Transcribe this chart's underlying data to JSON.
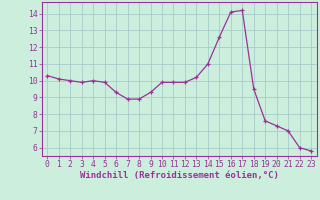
{
  "x": [
    0,
    1,
    2,
    3,
    4,
    5,
    6,
    7,
    8,
    9,
    10,
    11,
    12,
    13,
    14,
    15,
    16,
    17,
    18,
    19,
    20,
    21,
    22,
    23
  ],
  "y": [
    10.3,
    10.1,
    10.0,
    9.9,
    10.0,
    9.9,
    9.3,
    8.9,
    8.9,
    9.3,
    9.9,
    9.9,
    9.9,
    10.2,
    11.0,
    12.6,
    14.1,
    14.2,
    9.5,
    7.6,
    7.3,
    7.0,
    6.0,
    5.8
  ],
  "line_color": "#993399",
  "marker": "+",
  "marker_size": 3,
  "line_width": 0.9,
  "bg_color": "#cceedd",
  "grid_color": "#aacccc",
  "tick_color": "#993399",
  "label_color": "#993399",
  "xlabel": "Windchill (Refroidissement éolien,°C)",
  "xlabel_fontsize": 6.5,
  "tick_fontsize": 5.8,
  "ylim": [
    5.5,
    14.7
  ],
  "xlim": [
    -0.5,
    23.5
  ],
  "yticks": [
    6,
    7,
    8,
    9,
    10,
    11,
    12,
    13,
    14
  ],
  "xticks": [
    0,
    1,
    2,
    3,
    4,
    5,
    6,
    7,
    8,
    9,
    10,
    11,
    12,
    13,
    14,
    15,
    16,
    17,
    18,
    19,
    20,
    21,
    22,
    23
  ]
}
